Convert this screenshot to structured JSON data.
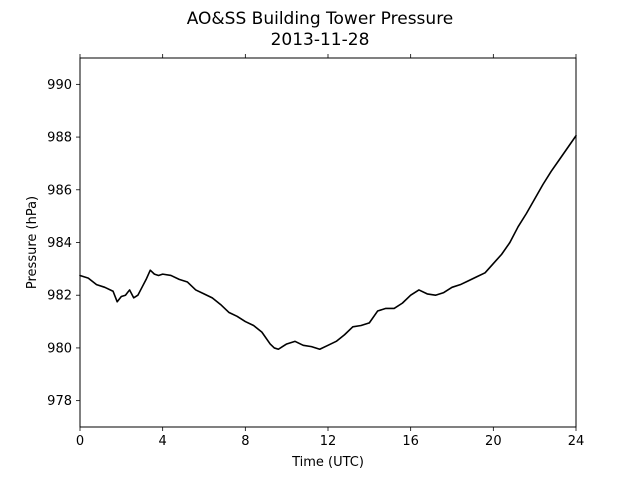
{
  "chart_data": {
    "type": "line",
    "title": "AO&SS Building Tower Pressure",
    "subtitle": "2013-11-28",
    "xlabel": "Time (UTC)",
    "ylabel": "Pressure (hPa)",
    "xlim": [
      0,
      24
    ],
    "ylim": [
      977,
      991
    ],
    "xticks": [
      0,
      4,
      8,
      12,
      16,
      20,
      24
    ],
    "yticks": [
      978,
      980,
      982,
      984,
      986,
      988,
      990
    ],
    "grid": false,
    "legend": "none",
    "line_color": "#000000",
    "series": [
      {
        "x": [
          0,
          0.4,
          0.8,
          1.2,
          1.6,
          1.8,
          2.0,
          2.2,
          2.4,
          2.6,
          2.8,
          3.0,
          3.2,
          3.4,
          3.6,
          3.8,
          4.0,
          4.4,
          4.8,
          5.2,
          5.6,
          6.0,
          6.4,
          6.8,
          7.2,
          7.6,
          8.0,
          8.4,
          8.8,
          9.2,
          9.4,
          9.6,
          9.8,
          10.0,
          10.4,
          10.8,
          11.2,
          11.6,
          12.0,
          12.4,
          12.8,
          13.2,
          13.6,
          14.0,
          14.4,
          14.8,
          15.2,
          15.6,
          16.0,
          16.4,
          16.8,
          17.2,
          17.6,
          18.0,
          18.4,
          18.8,
          19.2,
          19.6,
          20.0,
          20.4,
          20.8,
          21.2,
          21.6,
          22.0,
          22.4,
          22.8,
          23.2,
          23.6,
          24.0
        ],
        "y": [
          982.75,
          982.65,
          982.4,
          982.3,
          982.15,
          981.75,
          981.95,
          982.0,
          982.2,
          981.9,
          982.0,
          982.3,
          982.6,
          982.95,
          982.8,
          982.75,
          982.8,
          982.75,
          982.6,
          982.5,
          982.2,
          982.05,
          981.9,
          981.65,
          981.35,
          981.2,
          981.0,
          980.85,
          980.6,
          980.15,
          980.0,
          979.95,
          980.05,
          980.15,
          980.25,
          980.1,
          980.05,
          979.95,
          980.1,
          980.25,
          980.5,
          980.8,
          980.85,
          980.95,
          981.4,
          981.5,
          981.5,
          981.7,
          982.0,
          982.2,
          982.05,
          982.0,
          982.1,
          982.3,
          982.4,
          982.55,
          982.7,
          982.85,
          983.2,
          983.55,
          984.0,
          984.6,
          985.1,
          985.65,
          986.2,
          986.7,
          987.15,
          987.6,
          988.05
        ]
      }
    ]
  }
}
